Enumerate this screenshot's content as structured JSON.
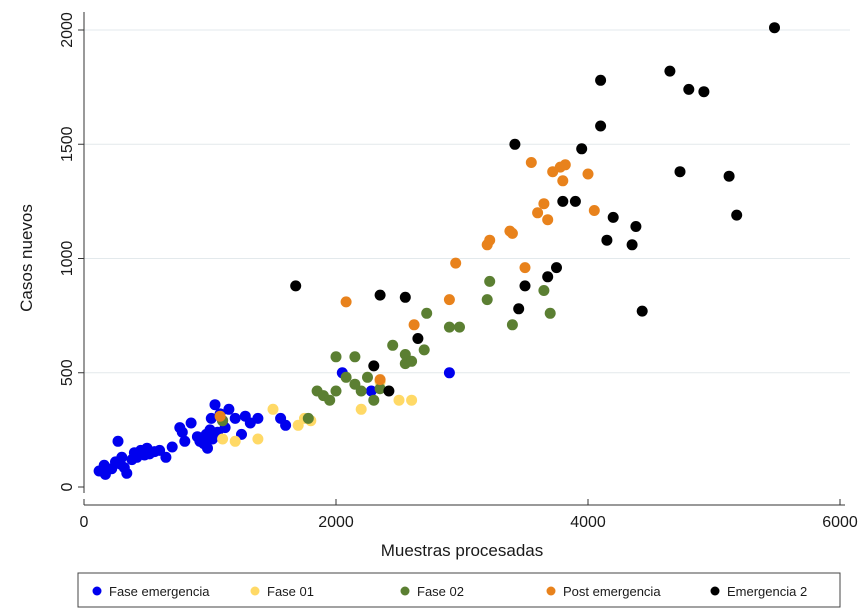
{
  "chart_data": {
    "type": "scatter",
    "xlabel": "Muestras procesadas",
    "ylabel": "Casos nuevos",
    "xlim": [
      0,
      6000
    ],
    "ylim": [
      0,
      2000
    ],
    "x_ticks": [
      "0",
      "2000",
      "4000",
      "6000"
    ],
    "y_ticks": [
      "0",
      "500",
      "1000",
      "1500",
      "2000"
    ],
    "grid": "horizontal",
    "legend_position": "bottom",
    "series": [
      {
        "name": "Fase emergencia",
        "color": "#0000ee",
        "points": [
          [
            120,
            70
          ],
          [
            160,
            95
          ],
          [
            170,
            55
          ],
          [
            220,
            80
          ],
          [
            250,
            110
          ],
          [
            270,
            200
          ],
          [
            290,
            100
          ],
          [
            300,
            130
          ],
          [
            320,
            85
          ],
          [
            340,
            60
          ],
          [
            380,
            120
          ],
          [
            400,
            150
          ],
          [
            420,
            130
          ],
          [
            450,
            160
          ],
          [
            480,
            140
          ],
          [
            500,
            170
          ],
          [
            520,
            145
          ],
          [
            560,
            155
          ],
          [
            600,
            160
          ],
          [
            650,
            130
          ],
          [
            700,
            175
          ],
          [
            760,
            260
          ],
          [
            780,
            240
          ],
          [
            800,
            200
          ],
          [
            850,
            280
          ],
          [
            900,
            220
          ],
          [
            920,
            200
          ],
          [
            950,
            190
          ],
          [
            970,
            230
          ],
          [
            980,
            170
          ],
          [
            1000,
            250
          ],
          [
            1010,
            300
          ],
          [
            1020,
            210
          ],
          [
            1040,
            360
          ],
          [
            1060,
            240
          ],
          [
            1080,
            320
          ],
          [
            1100,
            290
          ],
          [
            1120,
            260
          ],
          [
            1150,
            340
          ],
          [
            1200,
            300
          ],
          [
            1250,
            230
          ],
          [
            1280,
            310
          ],
          [
            1320,
            280
          ],
          [
            1380,
            300
          ],
          [
            1560,
            300
          ],
          [
            1600,
            270
          ],
          [
            2050,
            500
          ],
          [
            2280,
            420
          ],
          [
            2900,
            500
          ]
        ]
      },
      {
        "name": "Fase 01",
        "color": "#ffd966",
        "points": [
          [
            1100,
            210
          ],
          [
            1200,
            200
          ],
          [
            1380,
            210
          ],
          [
            1500,
            340
          ],
          [
            1700,
            270
          ],
          [
            1750,
            300
          ],
          [
            1800,
            290
          ],
          [
            2200,
            340
          ],
          [
            2350,
            460
          ],
          [
            2500,
            380
          ],
          [
            2600,
            380
          ]
        ]
      },
      {
        "name": "Fase 02",
        "color": "#5b7f32",
        "points": [
          [
            1100,
            290
          ],
          [
            1780,
            300
          ],
          [
            1850,
            420
          ],
          [
            1900,
            400
          ],
          [
            1950,
            380
          ],
          [
            2000,
            420
          ],
          [
            2000,
            570
          ],
          [
            2080,
            480
          ],
          [
            2150,
            450
          ],
          [
            2150,
            570
          ],
          [
            2200,
            420
          ],
          [
            2250,
            480
          ],
          [
            2300,
            380
          ],
          [
            2350,
            430
          ],
          [
            2450,
            620
          ],
          [
            2550,
            540
          ],
          [
            2550,
            580
          ],
          [
            2600,
            550
          ],
          [
            2700,
            600
          ],
          [
            2720,
            760
          ],
          [
            2900,
            700
          ],
          [
            2980,
            700
          ],
          [
            3200,
            820
          ],
          [
            3220,
            900
          ],
          [
            3400,
            710
          ],
          [
            3650,
            860
          ],
          [
            3700,
            760
          ]
        ]
      },
      {
        "name": "Post emergencia",
        "color": "#e8821c",
        "points": [
          [
            1080,
            310
          ],
          [
            2080,
            810
          ],
          [
            2350,
            470
          ],
          [
            2620,
            710
          ],
          [
            2900,
            820
          ],
          [
            2950,
            980
          ],
          [
            3200,
            1060
          ],
          [
            3220,
            1080
          ],
          [
            3380,
            1120
          ],
          [
            3400,
            1110
          ],
          [
            3500,
            960
          ],
          [
            3550,
            1420
          ],
          [
            3600,
            1200
          ],
          [
            3650,
            1240
          ],
          [
            3680,
            1170
          ],
          [
            3720,
            1380
          ],
          [
            3780,
            1400
          ],
          [
            3800,
            1340
          ],
          [
            3820,
            1410
          ],
          [
            4000,
            1370
          ],
          [
            4050,
            1210
          ]
        ]
      },
      {
        "name": "Emergencia 2",
        "color": "#000000",
        "points": [
          [
            1680,
            880
          ],
          [
            2300,
            530
          ],
          [
            2350,
            840
          ],
          [
            2420,
            420
          ],
          [
            2550,
            830
          ],
          [
            2650,
            650
          ],
          [
            3420,
            1500
          ],
          [
            3450,
            780
          ],
          [
            3500,
            880
          ],
          [
            3680,
            920
          ],
          [
            3750,
            960
          ],
          [
            3800,
            1250
          ],
          [
            3900,
            1250
          ],
          [
            3950,
            1480
          ],
          [
            4100,
            1580
          ],
          [
            4100,
            1780
          ],
          [
            4150,
            1080
          ],
          [
            4200,
            1180
          ],
          [
            4350,
            1060
          ],
          [
            4380,
            1140
          ],
          [
            4430,
            770
          ],
          [
            4650,
            1820
          ],
          [
            4730,
            1380
          ],
          [
            4800,
            1740
          ],
          [
            4920,
            1730
          ],
          [
            5120,
            1360
          ],
          [
            5180,
            1190
          ],
          [
            5480,
            2010
          ]
        ]
      }
    ]
  }
}
